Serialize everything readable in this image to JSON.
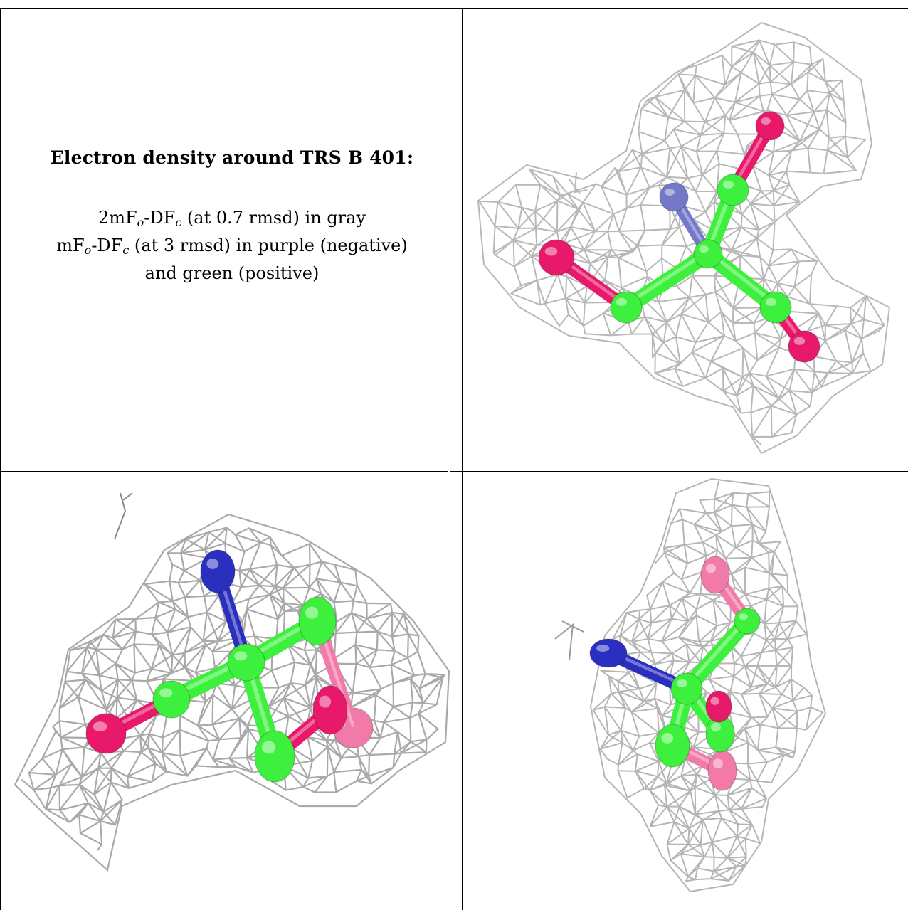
{
  "caption": {
    "title": "Electron density around TRS B 401:",
    "map1": {
      "prefix": "2mF",
      "sub_o": "o",
      "mid": "-DF",
      "sub_c": "c",
      "suffix": " (at 0.7 rmsd) in gray"
    },
    "map2": {
      "prefix": "mF",
      "sub_o": "o",
      "mid": "-DF",
      "sub_c": "c",
      "suffix": " (at 3 rmsd) in purple (negative)"
    },
    "map2_cont": "and green (positive)"
  },
  "colors": {
    "mesh": "#b8b8b8",
    "carbon": "#3df03d",
    "oxygen": "#e8196b",
    "nitrogen": "#2b2fbf",
    "nitrogen_faded": "#7478c8",
    "oxygen_faded": "#f27aa8",
    "grid_line": "#000000"
  },
  "panels": [
    {
      "name": "view-top-right",
      "icon": "molecule-density-view"
    },
    {
      "name": "view-bottom-left",
      "icon": "molecule-density-view"
    },
    {
      "name": "view-bottom-right",
      "icon": "molecule-density-view"
    }
  ]
}
